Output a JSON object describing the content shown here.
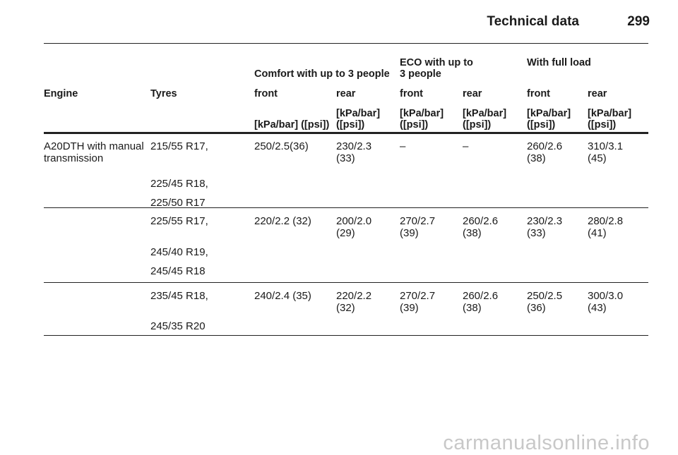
{
  "header": {
    "title": "Technical data",
    "page": "299"
  },
  "table": {
    "group_headers": [
      "Comfort with up to 3 people",
      "ECO with up to 3 people",
      "With full load"
    ],
    "columns": [
      "Engine",
      "Tyres",
      "front",
      "rear",
      "front",
      "rear",
      "front",
      "rear"
    ],
    "units": [
      "[kPa/bar] ([psi])",
      "[kPa/bar] ([psi])",
      "[kPa/bar] ([psi])",
      "[kPa/bar] ([psi])",
      "[kPa/bar] ([psi])",
      "[kPa/bar] ([psi])"
    ],
    "rows": [
      {
        "engine": "A20DTH with manual transmission",
        "tyres": [
          "215/55 R17,",
          "225/45 R18,",
          "225/50 R17"
        ],
        "values": [
          "250/2.5(36)",
          "230/2.3 (33)",
          "–",
          "–",
          "260/2.6 (38)",
          "310/3.1 (45)"
        ]
      },
      {
        "tyres": [
          "225/55 R17,",
          "245/40 R19,",
          "245/45 R18"
        ],
        "values": [
          "220/2.2 (32)",
          "200/2.0 (29)",
          "270/2.7 (39)",
          "260/2.6 (38)",
          "230/2.3 (33)",
          "280/2.8 (41)"
        ]
      },
      {
        "tyres": [
          "235/45 R18,",
          "245/35 R20"
        ],
        "values": [
          "240/2.4 (35)",
          "220/2.2 (32)",
          "270/2.7 (39)",
          "260/2.6 (38)",
          "250/2.5 (36)",
          "300/3.0 (43)"
        ]
      }
    ]
  },
  "watermark": "carmanualsonline.info"
}
